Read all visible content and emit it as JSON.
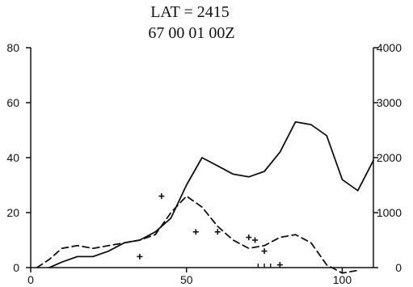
{
  "chart_data": {
    "type": "line",
    "title_line1": "LAT = 2415",
    "title_line2": "67  00  01  00Z",
    "xlim": [
      0,
      110
    ],
    "ylim_left": [
      0,
      80
    ],
    "ylim_right": [
      0,
      4000
    ],
    "x_ticks": [
      0,
      50,
      100
    ],
    "y_ticks_left": [
      0,
      20,
      40,
      60,
      80
    ],
    "y_ticks_right": [
      0,
      1000,
      2000,
      3000,
      4000
    ],
    "x_tick_labels": [
      "0",
      "50",
      "100"
    ],
    "y_tick_labels_left": [
      "0",
      "20",
      "40",
      "60",
      "80"
    ],
    "y_tick_labels_right": [
      "0",
      "1000",
      "2000",
      "3000",
      "4000"
    ],
    "grid": false,
    "series": [
      {
        "style": "solid",
        "axis": "left",
        "color": "#111111",
        "x": [
          6,
          10,
          15,
          20,
          25,
          30,
          35,
          40,
          45,
          50,
          55,
          60,
          65,
          70,
          75,
          80,
          85,
          90,
          95,
          100,
          105,
          110
        ],
        "y": [
          0,
          2,
          4,
          4,
          6,
          9,
          10,
          13,
          18,
          30,
          40,
          37,
          34,
          33,
          35,
          42,
          53,
          52,
          48,
          32,
          28,
          39
        ]
      },
      {
        "style": "dashed",
        "axis": "left",
        "color": "#111111",
        "x": [
          2,
          6,
          10,
          15,
          20,
          25,
          30,
          35,
          40,
          45,
          50,
          55,
          60,
          65,
          70,
          75,
          80,
          85,
          90,
          95,
          100,
          105
        ],
        "y": [
          0,
          3,
          7,
          8,
          7,
          8,
          9,
          10,
          12,
          20,
          26,
          22,
          15,
          10,
          7,
          8,
          11,
          12,
          9,
          1,
          -2,
          -1
        ]
      },
      {
        "style": "markers",
        "axis": "left",
        "marker": "+",
        "color": "#111111",
        "x": [
          35,
          42,
          53,
          60,
          70,
          72,
          75,
          80
        ],
        "y": [
          4,
          26,
          13,
          13,
          11,
          10,
          6,
          1
        ]
      },
      {
        "style": "x-ticks",
        "axis": "left",
        "color": "#111111",
        "x": [
          73,
          75,
          77
        ],
        "y": [
          0,
          0,
          0
        ]
      }
    ]
  }
}
